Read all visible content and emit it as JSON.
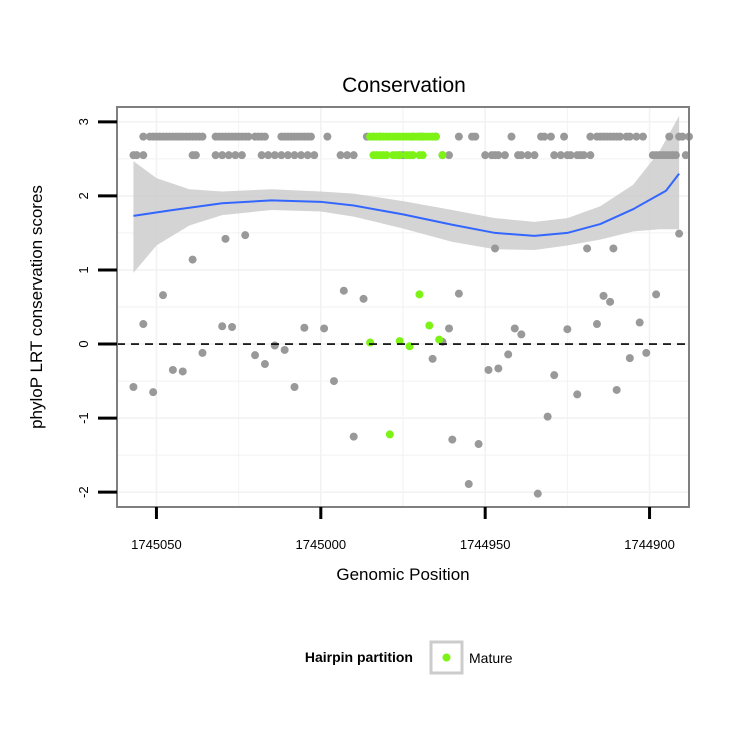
{
  "chart_data": {
    "type": "scatter",
    "title": "Conservation",
    "xlabel": "Genomic Position",
    "ylabel": "phyloP LRT conservation scores",
    "x_reversed": true,
    "xlim": [
      1745062,
      1744888
    ],
    "ylim": [
      -2.2,
      3.2
    ],
    "x_ticks": [
      1745050,
      1745000,
      1744950,
      1744900
    ],
    "x_tick_labels": [
      "1745050",
      "1745000",
      "1744950",
      "1744900"
    ],
    "y_ticks": [
      -2,
      -1,
      0,
      1,
      2,
      3
    ],
    "y_tick_labels": [
      "-2",
      "-1",
      "0",
      "1",
      "2",
      "3"
    ],
    "grid": true,
    "reference_line": {
      "y": 0,
      "style": "dashed"
    },
    "legend": {
      "title": "Hairpin partition",
      "position": "bottom",
      "entries": [
        {
          "label": "Mature",
          "color": "#7cf314"
        }
      ]
    },
    "colors": {
      "background_point": "#999999",
      "mature_point": "#7cf314",
      "smooth_line": "#3366ff",
      "smooth_ribbon": "#cccccc"
    },
    "series": [
      {
        "role": "background",
        "points": [
          [
            1745057,
            2.55
          ],
          [
            1745056,
            2.55
          ],
          [
            1745054,
            2.55
          ],
          [
            1745054,
            2.8
          ],
          [
            1745052,
            2.8
          ],
          [
            1745051,
            2.8
          ],
          [
            1745050,
            2.8
          ],
          [
            1745049,
            2.8
          ],
          [
            1745048,
            2.8
          ],
          [
            1745047,
            2.8
          ],
          [
            1745046,
            2.8
          ],
          [
            1745045,
            2.8
          ],
          [
            1745044,
            2.8
          ],
          [
            1745043,
            2.8
          ],
          [
            1745042,
            2.8
          ],
          [
            1745041,
            2.8
          ],
          [
            1745040,
            2.8
          ],
          [
            1745039,
            2.8
          ],
          [
            1745038,
            2.8
          ],
          [
            1745037,
            2.8
          ],
          [
            1745036,
            2.8
          ],
          [
            1745039,
            2.55
          ],
          [
            1745038,
            2.55
          ],
          [
            1745032,
            2.8
          ],
          [
            1745031,
            2.8
          ],
          [
            1745030,
            2.8
          ],
          [
            1745029,
            2.8
          ],
          [
            1745028,
            2.8
          ],
          [
            1745027,
            2.8
          ],
          [
            1745026,
            2.8
          ],
          [
            1745025,
            2.8
          ],
          [
            1745024,
            2.8
          ],
          [
            1745023,
            2.8
          ],
          [
            1745022,
            2.8
          ],
          [
            1745032,
            2.55
          ],
          [
            1745030,
            2.55
          ],
          [
            1745028,
            2.55
          ],
          [
            1745026,
            2.55
          ],
          [
            1745024,
            2.55
          ],
          [
            1745020,
            2.8
          ],
          [
            1745019,
            2.8
          ],
          [
            1745018,
            2.8
          ],
          [
            1745017,
            2.8
          ],
          [
            1745018,
            2.55
          ],
          [
            1745016,
            2.55
          ],
          [
            1745014,
            2.55
          ],
          [
            1745012,
            2.8
          ],
          [
            1745011,
            2.8
          ],
          [
            1745010,
            2.8
          ],
          [
            1745009,
            2.8
          ],
          [
            1745008,
            2.8
          ],
          [
            1745007,
            2.8
          ],
          [
            1745006,
            2.8
          ],
          [
            1745005,
            2.8
          ],
          [
            1745004,
            2.8
          ],
          [
            1745003,
            2.8
          ],
          [
            1745012,
            2.55
          ],
          [
            1745010,
            2.55
          ],
          [
            1745008,
            2.55
          ],
          [
            1745006,
            2.55
          ],
          [
            1745004,
            2.55
          ],
          [
            1745002,
            2.55
          ],
          [
            1744998,
            2.8
          ],
          [
            1744994,
            2.55
          ],
          [
            1744992,
            2.55
          ],
          [
            1744990,
            2.55
          ],
          [
            1744986,
            2.8
          ],
          [
            1744984,
            2.8
          ],
          [
            1744982,
            2.8
          ],
          [
            1744976,
            2.55
          ],
          [
            1744975,
            2.55
          ],
          [
            1744972,
            2.8
          ],
          [
            1744970,
            2.8
          ],
          [
            1744969,
            2.8
          ],
          [
            1744965,
            2.8
          ],
          [
            1744963,
            2.55
          ],
          [
            1744961,
            2.55
          ],
          [
            1744958,
            2.8
          ],
          [
            1744954,
            2.8
          ],
          [
            1744953,
            2.8
          ],
          [
            1744950,
            2.55
          ],
          [
            1744948,
            2.55
          ],
          [
            1744947,
            2.55
          ],
          [
            1744946,
            2.55
          ],
          [
            1744944,
            2.55
          ],
          [
            1744942,
            2.8
          ],
          [
            1744940,
            2.55
          ],
          [
            1744939,
            2.55
          ],
          [
            1744937,
            2.55
          ],
          [
            1744935,
            2.55
          ],
          [
            1744933,
            2.8
          ],
          [
            1744932,
            2.8
          ],
          [
            1744930,
            2.8
          ],
          [
            1744929,
            2.55
          ],
          [
            1744927,
            2.55
          ],
          [
            1744925,
            2.55
          ],
          [
            1744924,
            2.55
          ],
          [
            1744922,
            2.55
          ],
          [
            1744921,
            2.55
          ],
          [
            1744920,
            2.55
          ],
          [
            1744918,
            2.55
          ],
          [
            1744926,
            2.8
          ],
          [
            1744918,
            2.8
          ],
          [
            1744916,
            2.8
          ],
          [
            1744915,
            2.8
          ],
          [
            1744914,
            2.8
          ],
          [
            1744913,
            2.8
          ],
          [
            1744912,
            2.8
          ],
          [
            1744911,
            2.8
          ],
          [
            1744910,
            2.8
          ],
          [
            1744909,
            2.8
          ],
          [
            1744907,
            2.8
          ],
          [
            1744906,
            2.8
          ],
          [
            1744904,
            2.8
          ],
          [
            1744902,
            2.8
          ],
          [
            1744899,
            2.55
          ],
          [
            1744898,
            2.55
          ],
          [
            1744897,
            2.55
          ],
          [
            1744896,
            2.55
          ],
          [
            1744895,
            2.55
          ],
          [
            1744894,
            2.55
          ],
          [
            1744893,
            2.55
          ],
          [
            1744892,
            2.55
          ],
          [
            1744894,
            2.8
          ],
          [
            1744889,
            2.55
          ],
          [
            1744891,
            2.8
          ],
          [
            1744890,
            2.8
          ],
          [
            1744888,
            2.8
          ],
          [
            1745057,
            -0.58
          ],
          [
            1745054,
            0.27
          ],
          [
            1745051,
            -0.65
          ],
          [
            1745048,
            0.66
          ],
          [
            1745045,
            -0.35
          ],
          [
            1745042,
            -0.37
          ],
          [
            1745039,
            1.14
          ],
          [
            1745036,
            -0.12
          ],
          [
            1745030,
            0.24
          ],
          [
            1745029,
            1.42
          ],
          [
            1745027,
            0.23
          ],
          [
            1745023,
            1.47
          ],
          [
            1745020,
            -0.15
          ],
          [
            1745017,
            -0.27
          ],
          [
            1745014,
            -0.02
          ],
          [
            1745011,
            -0.08
          ],
          [
            1745008,
            -0.58
          ],
          [
            1745005,
            0.22
          ],
          [
            1744999,
            0.21
          ],
          [
            1744996,
            -0.5
          ],
          [
            1744993,
            0.72
          ],
          [
            1744990,
            -1.25
          ],
          [
            1744987,
            0.61
          ],
          [
            1744966,
            -0.2
          ],
          [
            1744963,
            0.03
          ],
          [
            1744961,
            0.21
          ],
          [
            1744960,
            -1.29
          ],
          [
            1744958,
            0.68
          ],
          [
            1744955,
            -1.89
          ],
          [
            1744952,
            -1.35
          ],
          [
            1744949,
            -0.35
          ],
          [
            1744947,
            1.29
          ],
          [
            1744946,
            -0.33
          ],
          [
            1744943,
            -0.14
          ],
          [
            1744941,
            0.21
          ],
          [
            1744939,
            0.13
          ],
          [
            1744934,
            -2.02
          ],
          [
            1744931,
            -0.98
          ],
          [
            1744929,
            -0.42
          ],
          [
            1744925,
            0.2
          ],
          [
            1744922,
            -0.68
          ],
          [
            1744919,
            1.29
          ],
          [
            1744916,
            0.27
          ],
          [
            1744914,
            0.65
          ],
          [
            1744912,
            0.57
          ],
          [
            1744911,
            1.29
          ],
          [
            1744910,
            -0.62
          ],
          [
            1744906,
            -0.19
          ],
          [
            1744903,
            0.29
          ],
          [
            1744901,
            -0.12
          ],
          [
            1744898,
            0.67
          ],
          [
            1744891,
            1.49
          ]
        ]
      },
      {
        "role": "mature",
        "name": "Mature",
        "points": [
          [
            1744985,
            2.8
          ],
          [
            1744984,
            2.8
          ],
          [
            1744983,
            2.8
          ],
          [
            1744982,
            2.8
          ],
          [
            1744981,
            2.8
          ],
          [
            1744980,
            2.8
          ],
          [
            1744979,
            2.8
          ],
          [
            1744978,
            2.8
          ],
          [
            1744977,
            2.8
          ],
          [
            1744976,
            2.8
          ],
          [
            1744975,
            2.8
          ],
          [
            1744974,
            2.8
          ],
          [
            1744973,
            2.8
          ],
          [
            1744972,
            2.8
          ],
          [
            1744971,
            2.8
          ],
          [
            1744970,
            2.8
          ],
          [
            1744969,
            2.8
          ],
          [
            1744968,
            2.8
          ],
          [
            1744967,
            2.8
          ],
          [
            1744966,
            2.8
          ],
          [
            1744965,
            2.8
          ],
          [
            1744984,
            2.55
          ],
          [
            1744983,
            2.55
          ],
          [
            1744982,
            2.55
          ],
          [
            1744981,
            2.55
          ],
          [
            1744980,
            2.55
          ],
          [
            1744978,
            2.55
          ],
          [
            1744977,
            2.55
          ],
          [
            1744976,
            2.55
          ],
          [
            1744974,
            2.55
          ],
          [
            1744973,
            2.55
          ],
          [
            1744972,
            2.55
          ],
          [
            1744970,
            2.55
          ],
          [
            1744969,
            2.55
          ],
          [
            1744963,
            2.55
          ],
          [
            1744985,
            0.02
          ],
          [
            1744979,
            -1.22
          ],
          [
            1744976,
            0.04
          ],
          [
            1744973,
            -0.03
          ],
          [
            1744970,
            0.67
          ],
          [
            1744967,
            0.25
          ],
          [
            1744964,
            0.06
          ]
        ]
      }
    ],
    "smooth": {
      "method": "loess",
      "curve": [
        [
          1745057,
          1.73
        ],
        [
          1745045,
          1.81
        ],
        [
          1745030,
          1.9
        ],
        [
          1745015,
          1.94
        ],
        [
          1745000,
          1.92
        ],
        [
          1744990,
          1.87
        ],
        [
          1744975,
          1.75
        ],
        [
          1744960,
          1.61
        ],
        [
          1744947,
          1.5
        ],
        [
          1744935,
          1.46
        ],
        [
          1744925,
          1.5
        ],
        [
          1744915,
          1.62
        ],
        [
          1744905,
          1.82
        ],
        [
          1744895,
          2.07
        ],
        [
          1744891,
          2.3
        ]
      ],
      "upper": [
        [
          1745057,
          2.47
        ],
        [
          1745050,
          2.24
        ],
        [
          1745040,
          2.09
        ],
        [
          1745030,
          2.06
        ],
        [
          1745015,
          2.09
        ],
        [
          1745000,
          2.06
        ],
        [
          1744990,
          2.03
        ],
        [
          1744975,
          1.93
        ],
        [
          1744960,
          1.81
        ],
        [
          1744947,
          1.7
        ],
        [
          1744935,
          1.65
        ],
        [
          1744925,
          1.7
        ],
        [
          1744915,
          1.86
        ],
        [
          1744905,
          2.15
        ],
        [
          1744897,
          2.6
        ],
        [
          1744891,
          3.08
        ]
      ],
      "lower": [
        [
          1745057,
          0.96
        ],
        [
          1745050,
          1.33
        ],
        [
          1745040,
          1.6
        ],
        [
          1745030,
          1.74
        ],
        [
          1745015,
          1.81
        ],
        [
          1745000,
          1.79
        ],
        [
          1744990,
          1.72
        ],
        [
          1744975,
          1.56
        ],
        [
          1744960,
          1.38
        ],
        [
          1744947,
          1.28
        ],
        [
          1744935,
          1.27
        ],
        [
          1744925,
          1.33
        ],
        [
          1744915,
          1.41
        ],
        [
          1744905,
          1.52
        ],
        [
          1744897,
          1.55
        ],
        [
          1744891,
          1.55
        ]
      ]
    }
  }
}
